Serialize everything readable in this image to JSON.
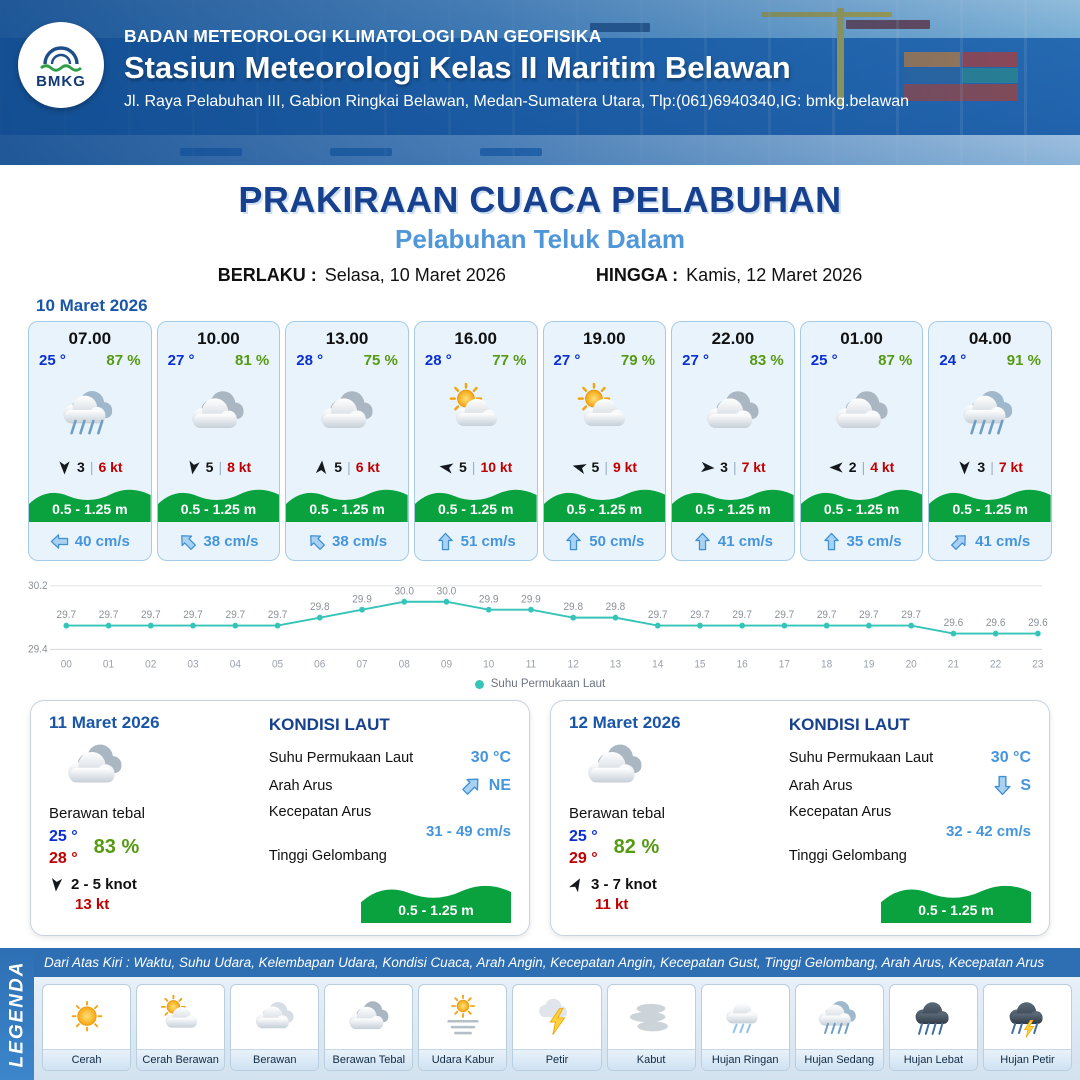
{
  "colors": {
    "header_blue": "#1f5fa9",
    "title_navy": "#17418f",
    "subtitle_blue": "#4f97d9",
    "date_blue": "#1a56a8",
    "temp_blue": "#0a2fd4",
    "temp_max_red": "#c00000",
    "humidity_green": "#569a12",
    "gust_red": "#c00000",
    "wave_green": "#0aa23f",
    "current_blue": "#4595dc",
    "card_bg": "#e8f3fc",
    "card_border": "#a6cbe8",
    "chart_teal": "#35c4b8",
    "legend_blue": "#2e6fb3"
  },
  "header": {
    "agency": "BADAN METEOROLOGI KLIMATOLOGI DAN GEOFISIKA",
    "station": "Stasiun Meteorologi Kelas II Maritim Belawan",
    "address": "Jl. Raya Pelabuhan III, Gabion Ringkai Belawan, Medan-Sumatera Utara, Tlp:(061)6940340,IG: bmkg.belawan",
    "logo_text": "BMKG"
  },
  "title": {
    "main": "PRAKIRAAN CUACA PELABUHAN",
    "port": "Pelabuhan Teluk Dalam"
  },
  "validity": {
    "berlaku_label": "BERLAKU :",
    "berlaku_value": "Selasa, 10 Maret 2026",
    "hingga_label": "HINGGA :",
    "hingga_value": "Kamis, 12 Maret 2026"
  },
  "forecast": {
    "date": "10 Maret 2026",
    "cards": [
      {
        "time": "07.00",
        "temp": "25 °",
        "humidity": "87 %",
        "icon": "rain-moderate",
        "wind_deg": 180,
        "wind_speed": "3",
        "wind_gust": "6 kt",
        "wave": "0.5 - 1.25 m",
        "current_deg": 270,
        "current": "40 cm/s"
      },
      {
        "time": "10.00",
        "temp": "27 °",
        "humidity": "81 %",
        "icon": "cloudy-thick",
        "wind_deg": 190,
        "wind_speed": "5",
        "wind_gust": "8 kt",
        "wave": "0.5 - 1.25 m",
        "current_deg": 315,
        "current": "38 cm/s"
      },
      {
        "time": "13.00",
        "temp": "28 °",
        "humidity": "75 %",
        "icon": "cloudy-thick",
        "wind_deg": 5,
        "wind_speed": "5",
        "wind_gust": "6 kt",
        "wave": "0.5 - 1.25 m",
        "current_deg": 315,
        "current": "38 cm/s"
      },
      {
        "time": "16.00",
        "temp": "28 °",
        "humidity": "77 %",
        "icon": "sun-cloud",
        "wind_deg": 280,
        "wind_speed": "5",
        "wind_gust": "10 kt",
        "wave": "0.5 - 1.25 m",
        "current_deg": 0,
        "current": "51 cm/s"
      },
      {
        "time": "19.00",
        "temp": "27 °",
        "humidity": "79 %",
        "icon": "sun-cloud",
        "wind_deg": 285,
        "wind_speed": "5",
        "wind_gust": "9 kt",
        "wave": "0.5 - 1.25 m",
        "current_deg": 0,
        "current": "50 cm/s"
      },
      {
        "time": "22.00",
        "temp": "27 °",
        "humidity": "83 %",
        "icon": "cloudy-thick",
        "wind_deg": 95,
        "wind_speed": "3",
        "wind_gust": "7 kt",
        "wave": "0.5 - 1.25 m",
        "current_deg": 0,
        "current": "41 cm/s"
      },
      {
        "time": "01.00",
        "temp": "25 °",
        "humidity": "87 %",
        "icon": "cloudy-thick",
        "wind_deg": 270,
        "wind_speed": "2",
        "wind_gust": "4 kt",
        "wave": "0.5 - 1.25 m",
        "current_deg": 0,
        "current": "35 cm/s"
      },
      {
        "time": "04.00",
        "temp": "24 °",
        "humidity": "91 %",
        "icon": "rain-moderate",
        "wind_deg": 180,
        "wind_speed": "3",
        "wind_gust": "7 kt",
        "wave": "0.5 - 1.25 m",
        "current_deg": 45,
        "current": "41 cm/s"
      }
    ]
  },
  "chart_data": {
    "type": "line",
    "series_label": "Suhu Permukaan Laut",
    "x": [
      "00",
      "01",
      "02",
      "03",
      "04",
      "05",
      "06",
      "07",
      "08",
      "09",
      "10",
      "11",
      "12",
      "13",
      "14",
      "15",
      "16",
      "17",
      "18",
      "19",
      "20",
      "21",
      "22",
      "23"
    ],
    "values": [
      29.7,
      29.7,
      29.7,
      29.7,
      29.7,
      29.7,
      29.8,
      29.9,
      30.0,
      30.0,
      29.9,
      29.9,
      29.8,
      29.8,
      29.7,
      29.7,
      29.7,
      29.7,
      29.7,
      29.7,
      29.7,
      29.6,
      29.6,
      29.6
    ],
    "ylim": [
      29.4,
      30.2
    ],
    "line_color": "#35c4b8",
    "legend_position": "bottom",
    "grid": false
  },
  "daily": [
    {
      "date": "11 Maret 2026",
      "icon": "cloudy-thick",
      "condition": "Berawan tebal",
      "temp_min": "25 °",
      "temp_max": "28 °",
      "humidity": "83 %",
      "wind_deg": 185,
      "wind_range": "2 - 5 knot",
      "wind_gust": "13 kt",
      "sea_title": "KONDISI LAUT",
      "sst_label": "Suhu Permukaan Laut",
      "sst_value": "30 °C",
      "current_dir_label": "Arah Arus",
      "current_dir": "NE",
      "current_speed_label": "Kecepatan Arus",
      "current_speed": "31 - 49 cm/s",
      "wave_label": "Tinggi Gelombang",
      "wave": "0.5 - 1.25 m"
    },
    {
      "date": "12 Maret 2026",
      "icon": "cloudy-thick",
      "condition": "Berawan tebal",
      "temp_min": "25 °",
      "temp_max": "29 °",
      "humidity": "82 %",
      "wind_deg": 30,
      "wind_range": "3 - 7 knot",
      "wind_gust": "11 kt",
      "sea_title": "KONDISI LAUT",
      "sst_label": "Suhu Permukaan Laut",
      "sst_value": "30 °C",
      "current_dir_label": "Arah Arus",
      "current_dir": "S",
      "current_speed_label": "Kecepatan Arus",
      "current_speed": "32 - 42 cm/s",
      "wave_label": "Tinggi Gelombang",
      "wave": "0.5 - 1.25 m"
    }
  ],
  "legend": {
    "side_label": "LEGENDA",
    "description": "Dari Atas Kiri : Waktu, Suhu Udara, Kelembapan Udara, Kondisi Cuaca, Arah Angin, Kecepatan Angin, Kecepatan Gust, Tinggi Gelombang, Arah Arus, Kecepatan Arus",
    "items": [
      {
        "label": "Cerah",
        "icon": "sun"
      },
      {
        "label": "Cerah Berawan",
        "icon": "sun-cloud"
      },
      {
        "label": "Berawan",
        "icon": "cloudy"
      },
      {
        "label": "Berawan Tebal",
        "icon": "cloudy-thick"
      },
      {
        "label": "Udara Kabur",
        "icon": "haze"
      },
      {
        "label": "Petir",
        "icon": "thunder"
      },
      {
        "label": "Kabut",
        "icon": "fog"
      },
      {
        "label": "Hujan Ringan",
        "icon": "rain-light"
      },
      {
        "label": "Hujan Sedang",
        "icon": "rain-moderate"
      },
      {
        "label": "Hujan Lebat",
        "icon": "rain-heavy"
      },
      {
        "label": "Hujan Petir",
        "icon": "thunder-rain"
      }
    ]
  }
}
